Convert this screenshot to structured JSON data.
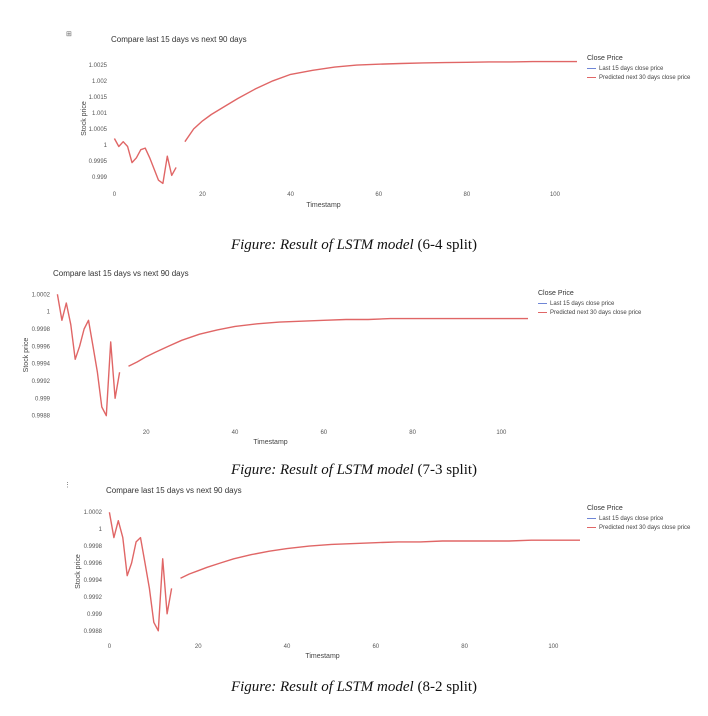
{
  "chart_data": [
    {
      "type": "line",
      "title": "Compare last 15 days vs next 90 days",
      "xlabel": "Timestamp",
      "ylabel": "Stock price",
      "xlim": [
        -1,
        105
      ],
      "ylim": [
        0.99875,
        1.0029
      ],
      "x_ticks": [
        0,
        20,
        40,
        60,
        80,
        100
      ],
      "y_ticks": [
        0.999,
        0.9995,
        1,
        1.0005,
        1.001,
        1.0015,
        1.002,
        1.0025
      ],
      "y_tick_labels": [
        "0.999",
        "0.9995",
        "1",
        "1.0005",
        "1.001",
        "1.0015",
        "1.002",
        "1.0025"
      ],
      "legend_title": "Close Price",
      "legend_position": "top-right",
      "grid": false,
      "series": [
        {
          "name": "Last 15 days close price",
          "color": "#6f86d6",
          "x": [
            0,
            1,
            2,
            3,
            4,
            5,
            6,
            7,
            8,
            9,
            10,
            11,
            12,
            13,
            14
          ],
          "y": [
            1.0002,
            0.99995,
            1.0001,
            0.99995,
            0.99945,
            0.9996,
            0.99985,
            0.9999,
            0.9996,
            0.99925,
            0.9989,
            0.9988,
            0.99965,
            0.99905,
            0.9993
          ]
        },
        {
          "name": "Predicted next 30 days close price",
          "color": "#e06666",
          "x": [
            16,
            18,
            20,
            22,
            25,
            28,
            32,
            36,
            40,
            45,
            50,
            55,
            60,
            65,
            70,
            75,
            80,
            85,
            90,
            95,
            100,
            105
          ],
          "y": [
            1.0001,
            1.0005,
            1.00075,
            1.00095,
            1.0012,
            1.00145,
            1.00175,
            1.002,
            1.0022,
            1.00233,
            1.00243,
            1.00249,
            1.00252,
            1.00254,
            1.00256,
            1.00257,
            1.00258,
            1.00259,
            1.00259,
            1.0026,
            1.0026,
            1.0026
          ]
        }
      ]
    },
    {
      "type": "line",
      "title": "Compare last 15 days vs next 90 days",
      "xlabel": "Timestamp",
      "ylabel": "Stock price",
      "xlim": [
        -1,
        106
      ],
      "ylim": [
        0.99875,
        1.00025
      ],
      "x_ticks": [
        20,
        40,
        60,
        80,
        100
      ],
      "y_ticks": [
        0.9988,
        0.999,
        0.9992,
        0.9994,
        0.9996,
        0.9998,
        1,
        1.0002
      ],
      "y_tick_labels": [
        "0.9988",
        "0.999",
        "0.9992",
        "0.9994",
        "0.9996",
        "0.9998",
        "1",
        "1.0002"
      ],
      "legend_title": "Close Price",
      "legend_position": "top-right",
      "grid": false,
      "series": [
        {
          "name": "Last 15 days close price",
          "color": "#6f86d6",
          "x": [
            0,
            1,
            2,
            3,
            4,
            5,
            6,
            7,
            8,
            9,
            10,
            11,
            12,
            13,
            14
          ],
          "y": [
            1.0002,
            0.9999,
            1.0001,
            0.99985,
            0.99945,
            0.9996,
            0.9998,
            0.9999,
            0.9996,
            0.9993,
            0.9989,
            0.9988,
            0.99965,
            0.999,
            0.9993
          ]
        },
        {
          "name": "Predicted next 30 days close price",
          "color": "#e06666",
          "x": [
            16,
            18,
            20,
            22,
            25,
            28,
            32,
            36,
            40,
            45,
            50,
            55,
            60,
            65,
            70,
            75,
            80,
            85,
            90,
            95,
            100,
            106
          ],
          "y": [
            0.99937,
            0.99942,
            0.99948,
            0.99953,
            0.9996,
            0.99967,
            0.99974,
            0.99979,
            0.99983,
            0.99986,
            0.99988,
            0.99989,
            0.9999,
            0.99991,
            0.99991,
            0.99992,
            0.99992,
            0.99992,
            0.99992,
            0.99992,
            0.99992,
            0.99992
          ]
        }
      ]
    },
    {
      "type": "line",
      "title": "Compare last 15 days vs next 90 days",
      "xlabel": "Timestamp",
      "ylabel": "Stock price",
      "xlim": [
        -1,
        106
      ],
      "ylim": [
        0.99875,
        1.00025
      ],
      "x_ticks": [
        0,
        20,
        40,
        60,
        80,
        100
      ],
      "y_ticks": [
        0.9988,
        0.999,
        0.9992,
        0.9994,
        0.9996,
        0.9998,
        1,
        1.0002
      ],
      "y_tick_labels": [
        "0.9988",
        "0.999",
        "0.9992",
        "0.9994",
        "0.9996",
        "0.9998",
        "1",
        "1.0002"
      ],
      "legend_title": "Close Price",
      "legend_position": "top-right",
      "grid": false,
      "series": [
        {
          "name": "Last 15 days close price",
          "color": "#6f86d6",
          "x": [
            0,
            1,
            2,
            3,
            4,
            5,
            6,
            7,
            8,
            9,
            10,
            11,
            12,
            13,
            14
          ],
          "y": [
            1.0002,
            0.9999,
            1.0001,
            0.9999,
            0.99945,
            0.9996,
            0.99985,
            0.9999,
            0.9996,
            0.9993,
            0.9989,
            0.9988,
            0.99965,
            0.999,
            0.9993
          ]
        },
        {
          "name": "Predicted next 30 days close price",
          "color": "#e06666",
          "x": [
            16,
            18,
            20,
            22,
            25,
            28,
            32,
            36,
            40,
            45,
            50,
            55,
            60,
            65,
            70,
            75,
            80,
            85,
            90,
            95,
            100,
            106
          ],
          "y": [
            0.99942,
            0.99947,
            0.99951,
            0.99955,
            0.9996,
            0.99965,
            0.9997,
            0.99974,
            0.99977,
            0.9998,
            0.99982,
            0.99983,
            0.99984,
            0.99985,
            0.99985,
            0.99986,
            0.99986,
            0.99986,
            0.99986,
            0.99987,
            0.99987,
            0.99987
          ]
        }
      ]
    }
  ],
  "captions": [
    {
      "italic": "Figure: Result of LSTM model",
      "plain": " (6-4 split)"
    },
    {
      "italic": "Figure: Result of LSTM model",
      "plain": " (7-3 split)"
    },
    {
      "italic": "Figure: Result of LSTM model",
      "plain": " (8-2 split)"
    }
  ]
}
